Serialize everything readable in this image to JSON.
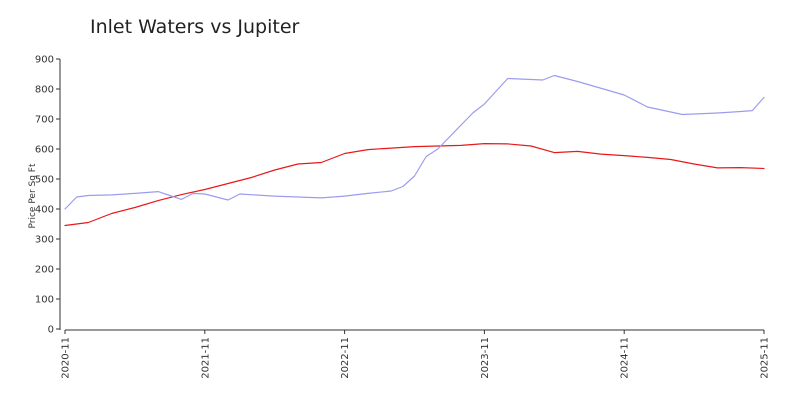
{
  "chart_data": {
    "type": "line",
    "title": "Inlet Waters vs Jupiter",
    "ylabel": "Price Per Sq Ft",
    "xlabel": "",
    "ylim": [
      0,
      900
    ],
    "yticks": [
      "0",
      "100",
      "200",
      "300",
      "400",
      "500",
      "600",
      "700",
      "800",
      "900"
    ],
    "xticks": [
      "2020-11",
      "2021-11",
      "2022-11",
      "2023-11",
      "2024-11",
      "2025-11"
    ],
    "grid": false,
    "legend": "none",
    "series": [
      {
        "color": "#e8191b",
        "points": [
          [
            "2020-11",
            345
          ],
          [
            "2021-01",
            355
          ],
          [
            "2021-03",
            385
          ],
          [
            "2021-05",
            405
          ],
          [
            "2021-07",
            428
          ],
          [
            "2021-09",
            448
          ],
          [
            "2021-11",
            465
          ],
          [
            "2022-01",
            485
          ],
          [
            "2022-03",
            505
          ],
          [
            "2022-05",
            530
          ],
          [
            "2022-07",
            550
          ],
          [
            "2022-09",
            555
          ],
          [
            "2022-11",
            585
          ],
          [
            "2023-01",
            598
          ],
          [
            "2023-03",
            603
          ],
          [
            "2023-05",
            608
          ],
          [
            "2023-07",
            610
          ],
          [
            "2023-09",
            612
          ],
          [
            "2023-11",
            618
          ],
          [
            "2024-01",
            617
          ],
          [
            "2024-03",
            610
          ],
          [
            "2024-05",
            588
          ],
          [
            "2024-07",
            592
          ],
          [
            "2024-09",
            583
          ],
          [
            "2024-11",
            578
          ],
          [
            "2025-01",
            572
          ],
          [
            "2025-03",
            565
          ],
          [
            "2025-05",
            550
          ],
          [
            "2025-07",
            537
          ],
          [
            "2025-09",
            538
          ],
          [
            "2025-11",
            535
          ]
        ]
      },
      {
        "color": "#9c9cee",
        "points": [
          [
            "2020-11",
            400
          ],
          [
            "2020-12",
            440
          ],
          [
            "2021-01",
            445
          ],
          [
            "2021-03",
            447
          ],
          [
            "2021-05",
            452
          ],
          [
            "2021-07",
            458
          ],
          [
            "2021-08",
            445
          ],
          [
            "2021-09",
            432
          ],
          [
            "2021-10",
            452
          ],
          [
            "2021-11",
            450
          ],
          [
            "2022-01",
            430
          ],
          [
            "2022-02",
            450
          ],
          [
            "2022-05",
            443
          ],
          [
            "2022-07",
            440
          ],
          [
            "2022-09",
            437
          ],
          [
            "2022-11",
            443
          ],
          [
            "2023-01",
            452
          ],
          [
            "2023-03",
            460
          ],
          [
            "2023-04",
            475
          ],
          [
            "2023-05",
            510
          ],
          [
            "2023-06",
            575
          ],
          [
            "2023-07",
            600
          ],
          [
            "2023-09",
            680
          ],
          [
            "2023-10",
            720
          ],
          [
            "2023-11",
            750
          ],
          [
            "2024-01",
            835
          ],
          [
            "2024-04",
            830
          ],
          [
            "2024-05",
            845
          ],
          [
            "2024-07",
            825
          ],
          [
            "2024-11",
            780
          ],
          [
            "2025-01",
            740
          ],
          [
            "2025-04",
            715
          ],
          [
            "2025-07",
            720
          ],
          [
            "2025-09",
            725
          ],
          [
            "2025-10",
            728
          ],
          [
            "2025-11",
            772
          ]
        ]
      }
    ]
  }
}
